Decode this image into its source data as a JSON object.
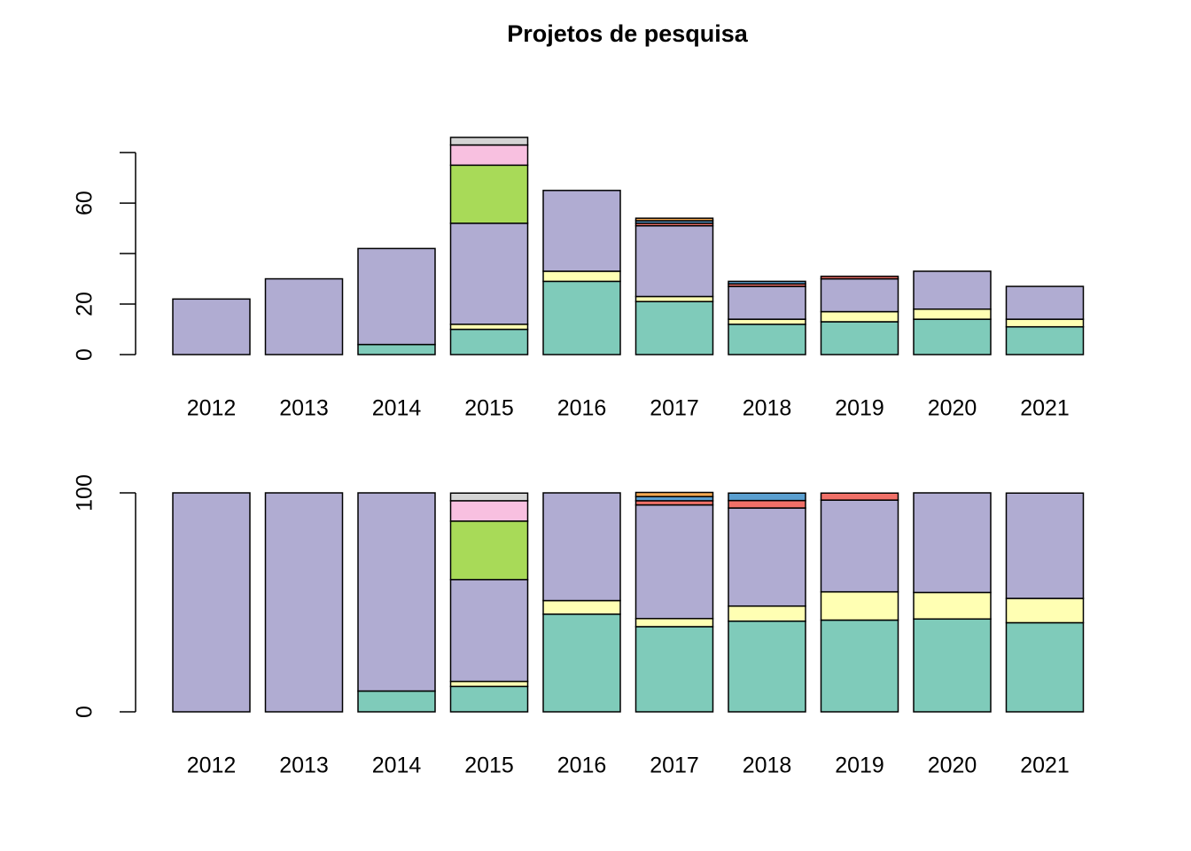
{
  "chart_data": [
    {
      "type": "bar",
      "stacked": true,
      "title": "Projetos de pesquisa",
      "categories": [
        "2012",
        "2013",
        "2014",
        "2015",
        "2016",
        "2017",
        "2018",
        "2019",
        "2020",
        "2021"
      ],
      "series": [
        {
          "color": "#7fcbba",
          "values": [
            0,
            0,
            4,
            10,
            29,
            21,
            12,
            13,
            14,
            11
          ]
        },
        {
          "color": "#ffffb3",
          "values": [
            0,
            0,
            0,
            2,
            4,
            2,
            2,
            4,
            4,
            3
          ]
        },
        {
          "color": "#b0acd2",
          "values": [
            22,
            30,
            38,
            40,
            32,
            28,
            13,
            13,
            15,
            13
          ]
        },
        {
          "color": "#f07068",
          "values": [
            0,
            0,
            0,
            0,
            0,
            1,
            1,
            1,
            0,
            0
          ]
        },
        {
          "color": "#5a9fd0",
          "values": [
            0,
            0,
            0,
            0,
            0,
            1,
            1,
            0,
            0,
            0
          ]
        },
        {
          "color": "#f5a850",
          "values": [
            0,
            0,
            0,
            0,
            0,
            1,
            0,
            0,
            0,
            0
          ]
        },
        {
          "color": "#a8da58",
          "values": [
            0,
            0,
            0,
            23,
            0,
            0,
            0,
            0,
            0,
            0
          ]
        },
        {
          "color": "#f8c0e0",
          "values": [
            0,
            0,
            0,
            8,
            0,
            0,
            0,
            0,
            0,
            0
          ]
        },
        {
          "color": "#d4d4d4",
          "values": [
            0,
            0,
            0,
            3,
            0,
            0,
            0,
            0,
            0,
            0
          ]
        }
      ],
      "ylim": [
        0,
        86
      ],
      "yticks": [
        0,
        20,
        60
      ],
      "ytick_marks": [
        0,
        20,
        40,
        60,
        80
      ]
    },
    {
      "type": "bar",
      "stacked": true,
      "categories": [
        "2012",
        "2013",
        "2014",
        "2015",
        "2016",
        "2017",
        "2018",
        "2019",
        "2020",
        "2021"
      ],
      "series": [
        {
          "color": "#7fcbba",
          "values": [
            0,
            0,
            9.5,
            11.6,
            44.6,
            38.9,
            41.4,
            41.9,
            42.4,
            40.7
          ]
        },
        {
          "color": "#ffffb3",
          "values": [
            0,
            0,
            0,
            2.3,
            6.2,
            3.7,
            6.9,
            12.9,
            12.1,
            11.1
          ]
        },
        {
          "color": "#b0acd2",
          "values": [
            100,
            100,
            90.5,
            46.5,
            49.2,
            51.9,
            44.8,
            41.9,
            45.5,
            48.1
          ]
        },
        {
          "color": "#f07068",
          "values": [
            0,
            0,
            0,
            0,
            0,
            1.9,
            3.4,
            3.2,
            0,
            0
          ]
        },
        {
          "color": "#5a9fd0",
          "values": [
            0,
            0,
            0,
            0,
            0,
            1.9,
            3.4,
            0,
            0,
            0
          ]
        },
        {
          "color": "#f5a850",
          "values": [
            0,
            0,
            0,
            0,
            0,
            1.9,
            0,
            0,
            0,
            0
          ]
        },
        {
          "color": "#a8da58",
          "values": [
            0,
            0,
            0,
            26.7,
            0,
            0,
            0,
            0,
            0,
            0
          ]
        },
        {
          "color": "#f8c0e0",
          "values": [
            0,
            0,
            0,
            9.3,
            0,
            0,
            0,
            0,
            0,
            0
          ]
        },
        {
          "color": "#d4d4d4",
          "values": [
            0,
            0,
            0,
            3.5,
            0,
            0,
            0,
            0,
            0,
            0
          ]
        }
      ],
      "ylim": [
        0,
        100
      ],
      "yticks": [
        0,
        100
      ]
    }
  ]
}
